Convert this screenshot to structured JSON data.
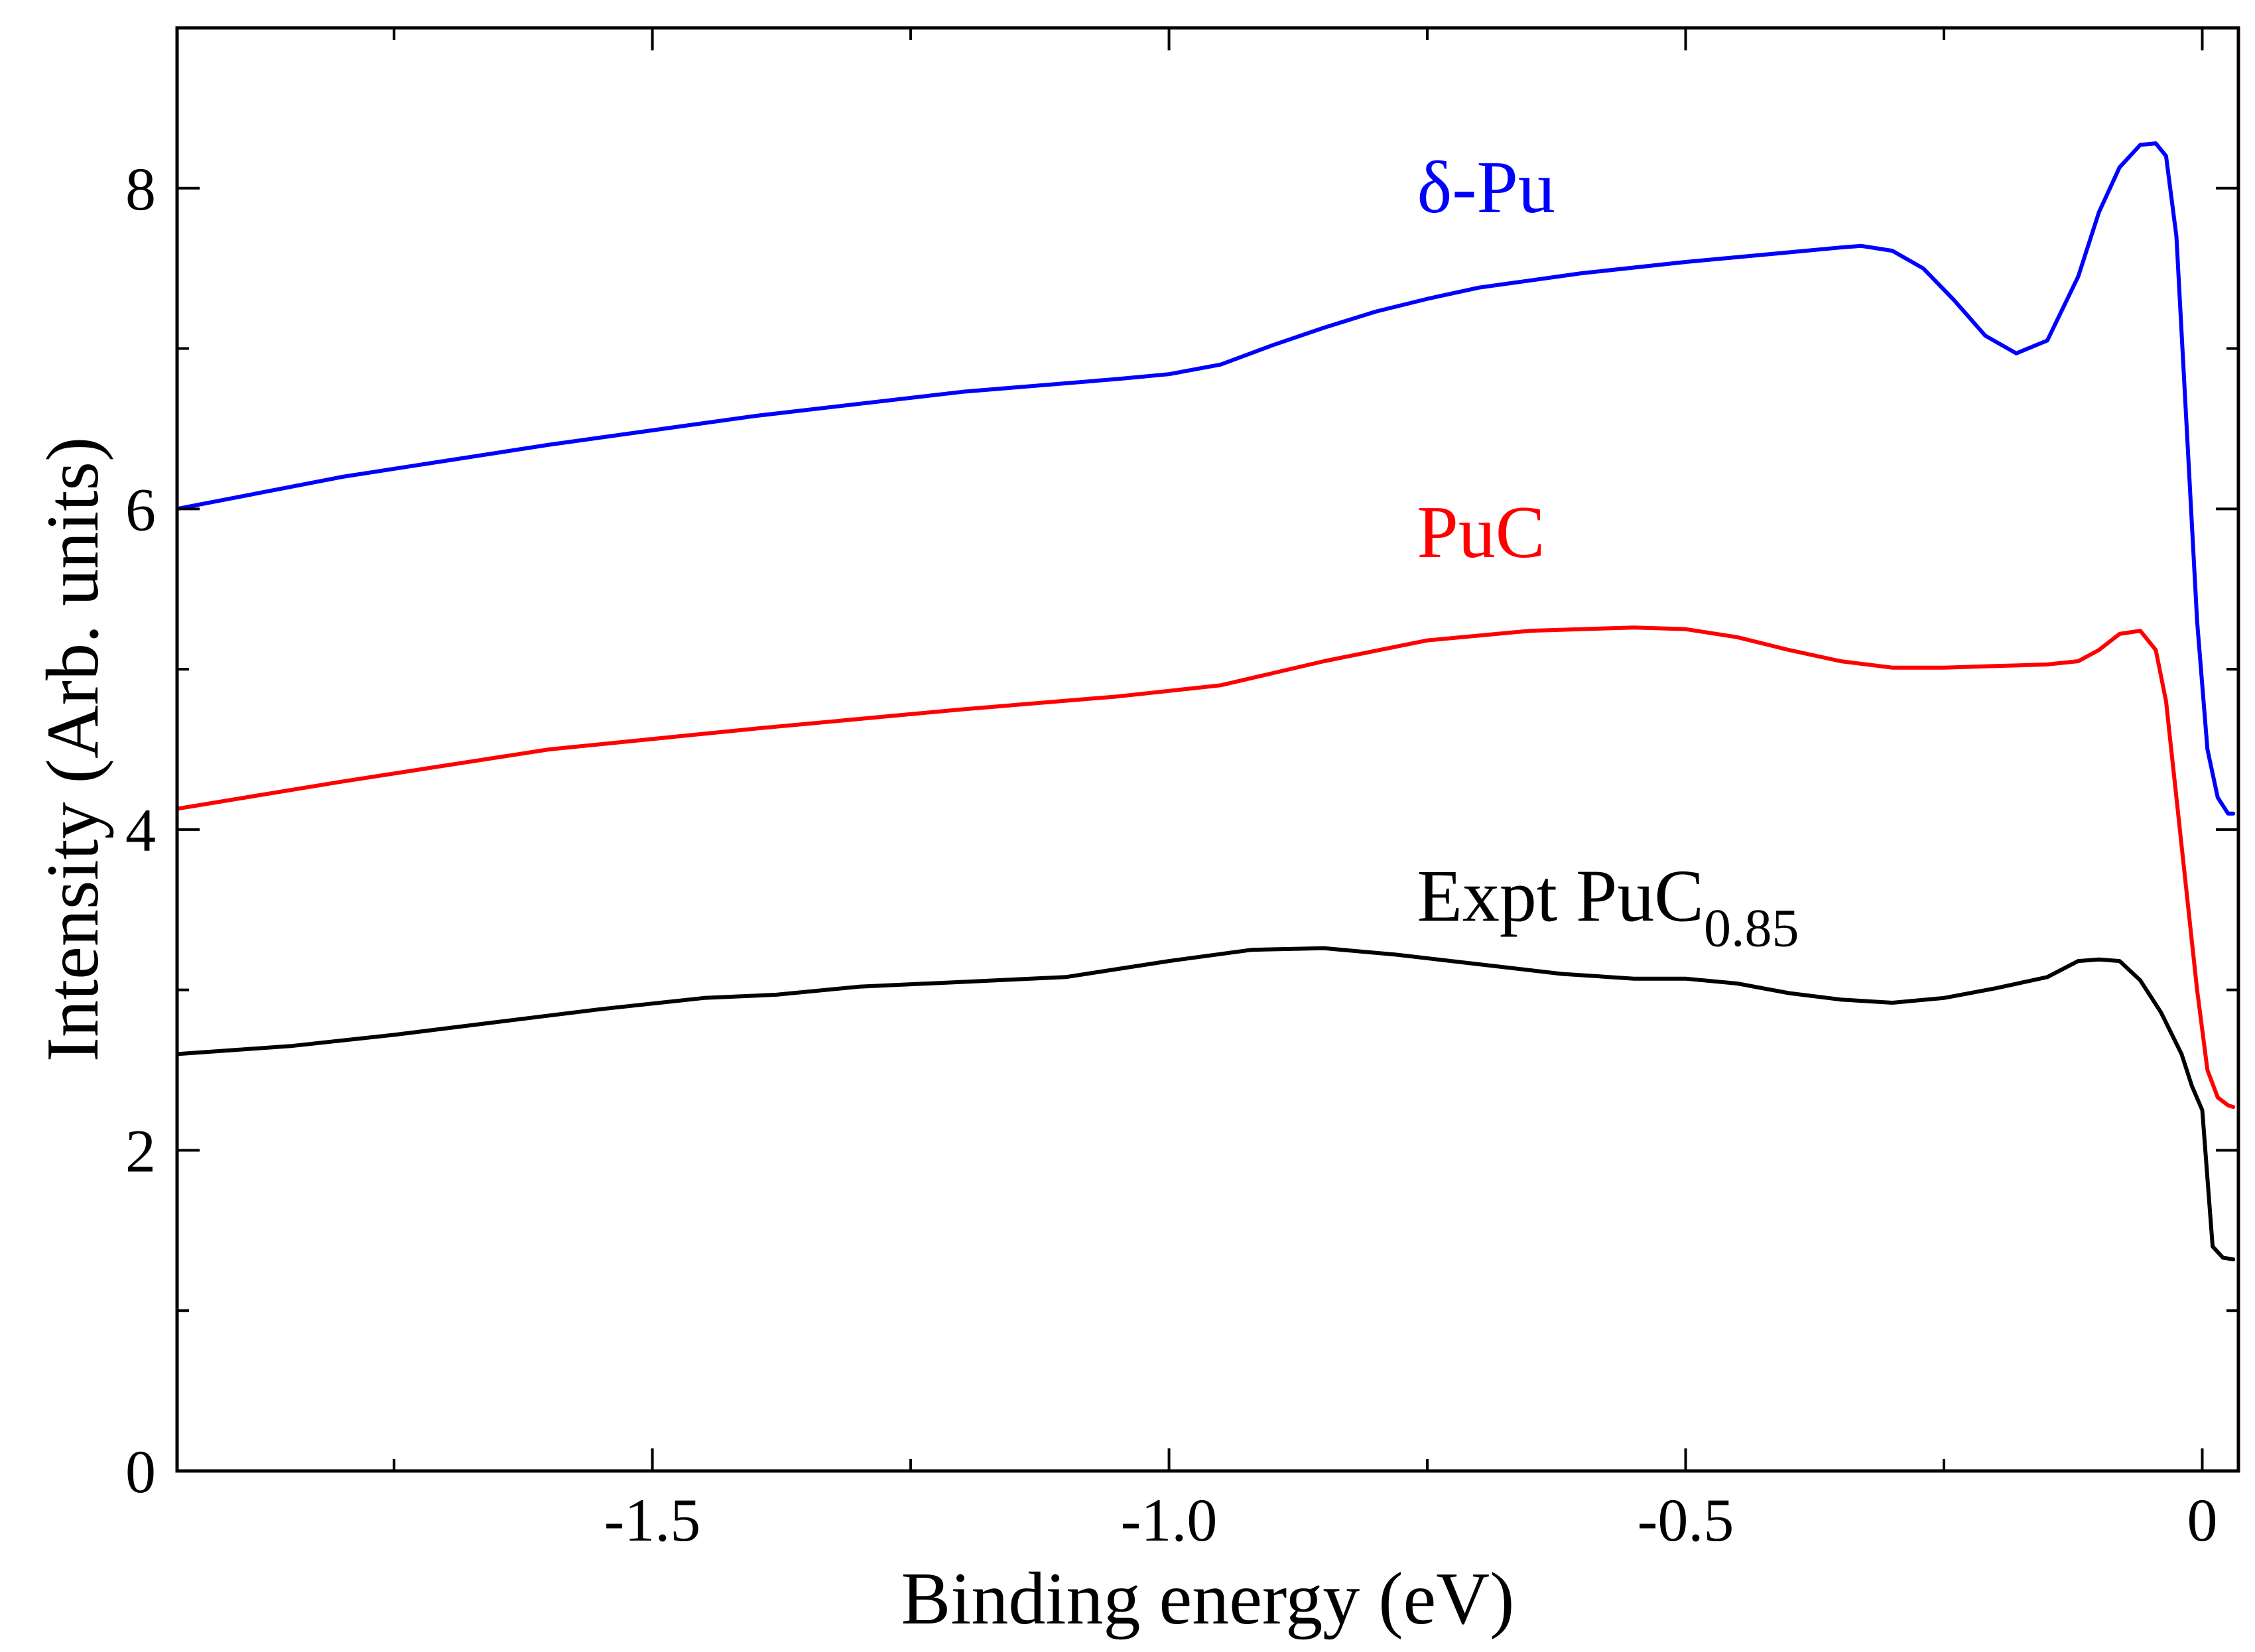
{
  "chart_data": {
    "type": "line",
    "title": "",
    "xlabel": "Binding energy (eV)",
    "ylabel": "Intensity (Arb. units)",
    "xlim": [
      -1.96,
      0.035
    ],
    "ylim": [
      0,
      9
    ],
    "grid": false,
    "x_ticks": [
      {
        "value": -1.5,
        "label": "-1.5"
      },
      {
        "value": -1.0,
        "label": "-1.0"
      },
      {
        "value": -0.5,
        "label": "-0.5"
      },
      {
        "value": 0,
        "label": "0"
      }
    ],
    "x_minor_ticks": [
      -1.75,
      -1.25,
      -0.75,
      -0.25
    ],
    "y_ticks": [
      {
        "value": 0,
        "label": "0"
      },
      {
        "value": 2,
        "label": "2"
      },
      {
        "value": 4,
        "label": "4"
      },
      {
        "value": 6,
        "label": "6"
      },
      {
        "value": 8,
        "label": "8"
      }
    ],
    "y_minor_ticks": [
      1,
      3,
      5,
      7
    ],
    "series": [
      {
        "name": "δ-Pu",
        "color": "#0000ff",
        "x": [
          -1.96,
          -1.8,
          -1.6,
          -1.4,
          -1.2,
          -1.05,
          -1.0,
          -0.95,
          -0.9,
          -0.85,
          -0.8,
          -0.75,
          -0.7,
          -0.6,
          -0.5,
          -0.4,
          -0.35,
          -0.33,
          -0.3,
          -0.27,
          -0.24,
          -0.21,
          -0.18,
          -0.15,
          -0.12,
          -0.1,
          -0.08,
          -0.06,
          -0.045,
          -0.035,
          -0.025,
          -0.015,
          -0.005,
          0.005,
          0.015,
          0.025,
          0.03
        ],
        "values": [
          6.0,
          6.2,
          6.4,
          6.58,
          6.73,
          6.81,
          6.84,
          6.9,
          7.02,
          7.13,
          7.23,
          7.31,
          7.38,
          7.47,
          7.54,
          7.6,
          7.63,
          7.64,
          7.61,
          7.5,
          7.3,
          7.08,
          6.97,
          7.05,
          7.45,
          7.85,
          8.13,
          8.27,
          8.28,
          8.2,
          7.7,
          6.5,
          5.3,
          4.5,
          4.2,
          4.1,
          4.1
        ]
      },
      {
        "name": "PuC",
        "color": "#ff0000",
        "x": [
          -1.96,
          -1.8,
          -1.6,
          -1.4,
          -1.2,
          -1.05,
          -0.95,
          -0.85,
          -0.75,
          -0.65,
          -0.55,
          -0.5,
          -0.45,
          -0.4,
          -0.35,
          -0.3,
          -0.25,
          -0.2,
          -0.15,
          -0.12,
          -0.1,
          -0.08,
          -0.06,
          -0.045,
          -0.035,
          -0.025,
          -0.015,
          -0.005,
          0.005,
          0.015,
          0.025,
          0.03
        ],
        "values": [
          4.13,
          4.3,
          4.5,
          4.63,
          4.75,
          4.83,
          4.9,
          5.05,
          5.18,
          5.24,
          5.26,
          5.25,
          5.2,
          5.12,
          5.05,
          5.01,
          5.01,
          5.02,
          5.03,
          5.05,
          5.12,
          5.22,
          5.24,
          5.12,
          4.8,
          4.2,
          3.6,
          3.0,
          2.5,
          2.33,
          2.28,
          2.27
        ]
      },
      {
        "name": "Expt PuC0.85",
        "color": "#000000",
        "x": [
          -1.96,
          -1.85,
          -1.75,
          -1.65,
          -1.55,
          -1.45,
          -1.38,
          -1.3,
          -1.2,
          -1.1,
          -1.0,
          -0.92,
          -0.85,
          -0.78,
          -0.7,
          -0.62,
          -0.55,
          -0.5,
          -0.45,
          -0.4,
          -0.35,
          -0.3,
          -0.25,
          -0.2,
          -0.15,
          -0.12,
          -0.1,
          -0.08,
          -0.06,
          -0.04,
          -0.02,
          -0.01,
          0.0,
          0.01,
          0.02,
          0.03
        ],
        "values": [
          2.6,
          2.65,
          2.72,
          2.8,
          2.88,
          2.95,
          2.97,
          3.02,
          3.05,
          3.08,
          3.18,
          3.25,
          3.26,
          3.22,
          3.16,
          3.1,
          3.07,
          3.07,
          3.04,
          2.98,
          2.94,
          2.92,
          2.95,
          3.01,
          3.08,
          3.18,
          3.19,
          3.18,
          3.06,
          2.86,
          2.6,
          2.4,
          2.25,
          1.4,
          1.33,
          1.32
        ]
      }
    ],
    "annotations": [
      {
        "series": "δ-Pu",
        "text": "δ-Pu",
        "x": -0.76,
        "y": 7.85,
        "color": "#0000ff"
      },
      {
        "series": "PuC",
        "text": "PuC",
        "x": -0.76,
        "y": 5.7,
        "color": "#ff0000"
      },
      {
        "series": "Expt PuC0.85",
        "text": "Expt PuC",
        "subscript": "0.85",
        "x": -0.76,
        "y": 3.43,
        "color": "#000000"
      }
    ]
  }
}
